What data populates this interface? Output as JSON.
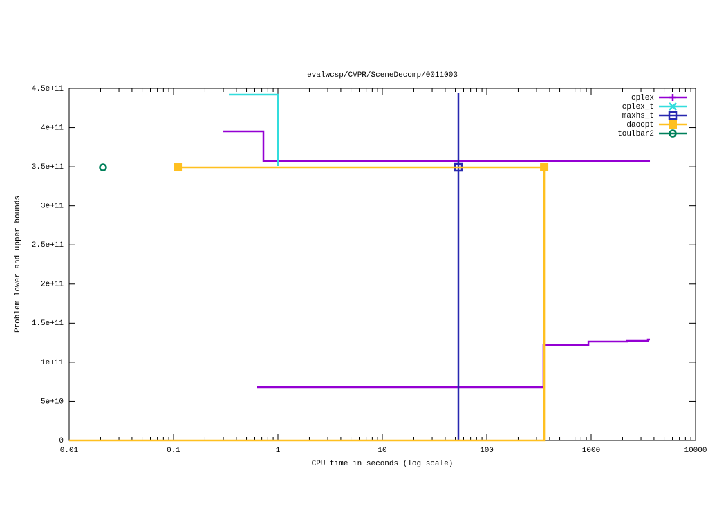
{
  "chart_data": {
    "type": "line",
    "title": "evalwcsp/CVPR/SceneDecomp/0011003",
    "x_label": "CPU time in seconds (log scale)",
    "y_label": "Problem lower and upper bounds",
    "x_log": true,
    "xlim": [
      0.01,
      10000
    ],
    "xticks": [
      0.01,
      0.1,
      1,
      10,
      100,
      1000,
      10000
    ],
    "ylim": [
      0,
      450000000000
    ],
    "yticks": [
      0,
      {
        "value": 50000000000,
        "label": "5e+10"
      },
      {
        "value": 100000000000,
        "label": "1e+11"
      },
      {
        "value": 150000000000,
        "label": "1.5e+11"
      },
      {
        "value": 200000000000,
        "label": "2e+11"
      },
      {
        "value": 250000000000,
        "label": "2.5e+11"
      },
      {
        "value": 300000000000,
        "label": "3e+11"
      },
      {
        "value": 350000000000,
        "label": "3.5e+11"
      },
      {
        "value": 400000000000,
        "label": "4e+11"
      },
      {
        "value": 450000000000,
        "label": "4.5e+11"
      }
    ],
    "legend": "top-right",
    "series": [
      {
        "name": "cplex",
        "color": "#9400d3",
        "marker": "plus",
        "x": [
          0.3,
          0.726,
          0.726,
          3656,
          null,
          0.624,
          349,
          349,
          942,
          942,
          2209,
          2209,
          3490,
          3490,
          3656
        ],
        "y": [
          395200000000,
          395200000000,
          357200000000,
          357200000000,
          null,
          68100000000,
          68100000000,
          122000000000,
          122000000000,
          126400000000,
          126400000000,
          127300000000,
          127300000000,
          129100000000,
          129100000000
        ],
        "marker_x": [],
        "marker_y": []
      },
      {
        "name": "cplex_t",
        "color": "#33dddd",
        "marker": "x",
        "x": [
          0.339,
          1,
          1
        ],
        "y": [
          442000000000,
          442000000000,
          351000000000
        ],
        "marker_x": [],
        "marker_y": []
      },
      {
        "name": "maxhs_t",
        "color": "#2828b0",
        "marker": "square",
        "x": [
          53.5,
          53.5
        ],
        "y": [
          443800000000,
          0
        ],
        "marker_x": [
          53.5
        ],
        "marker_y": [
          349200000000
        ]
      },
      {
        "name": "daoopt",
        "color": "#ffc020",
        "marker": "filled-square",
        "x": [
          0.01,
          355,
          355,
          0.1097
        ],
        "y": [
          0,
          0,
          349200000000,
          349200000000
        ],
        "marker_x": [
          0.1097,
          355
        ],
        "marker_y": [
          349200000000,
          349200000000
        ]
      },
      {
        "name": "toulbar2",
        "color": "#00805a",
        "marker": "circle",
        "x": [],
        "y": [],
        "marker_x": [
          0.0211
        ],
        "marker_y": [
          349200000000
        ]
      }
    ]
  }
}
